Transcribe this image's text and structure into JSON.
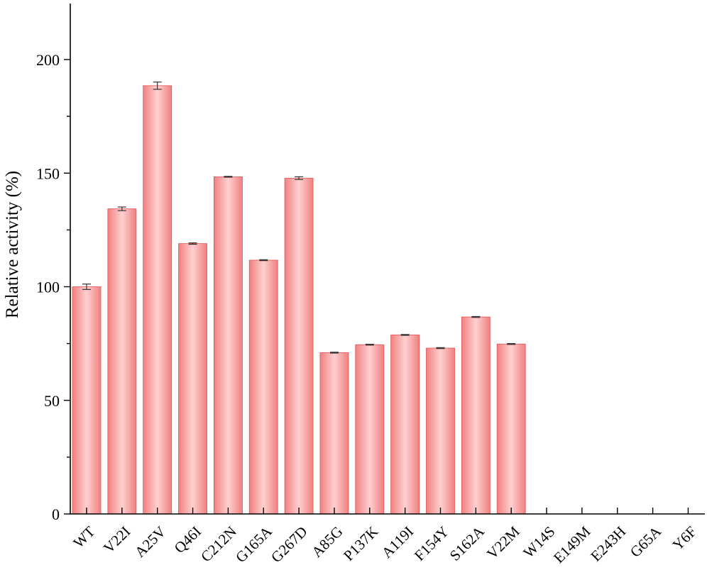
{
  "chart_data": {
    "type": "bar",
    "title": "",
    "xlabel": "",
    "ylabel": "Relative activity (%)",
    "ylim": [
      0,
      200
    ],
    "yticks": [
      0,
      50,
      100,
      150,
      200
    ],
    "grid": false,
    "categories": [
      "WT",
      "V22I",
      "A25V",
      "Q46I",
      "C212N",
      "G165A",
      "G267D",
      "A85G",
      "P137K",
      "A119I",
      "F154Y",
      "S162A",
      "V22M",
      "W14S",
      "E149M",
      "E243H",
      "G65A",
      "Y6F"
    ],
    "values": [
      100,
      134.3,
      188.5,
      119,
      148.4,
      111.7,
      147.8,
      71,
      74.5,
      78.8,
      73,
      86.7,
      74.8,
      0,
      0,
      0,
      0,
      0
    ],
    "errors": [
      1.2,
      0.8,
      1.6,
      0.3,
      0.2,
      0.2,
      0.6,
      0.2,
      0.2,
      0.2,
      0.2,
      0.2,
      0.2,
      0,
      0,
      0,
      0,
      0
    ],
    "bar_color": "#f08080",
    "bar_highlight": "#ffd0d0",
    "axis_color": "#000000"
  }
}
